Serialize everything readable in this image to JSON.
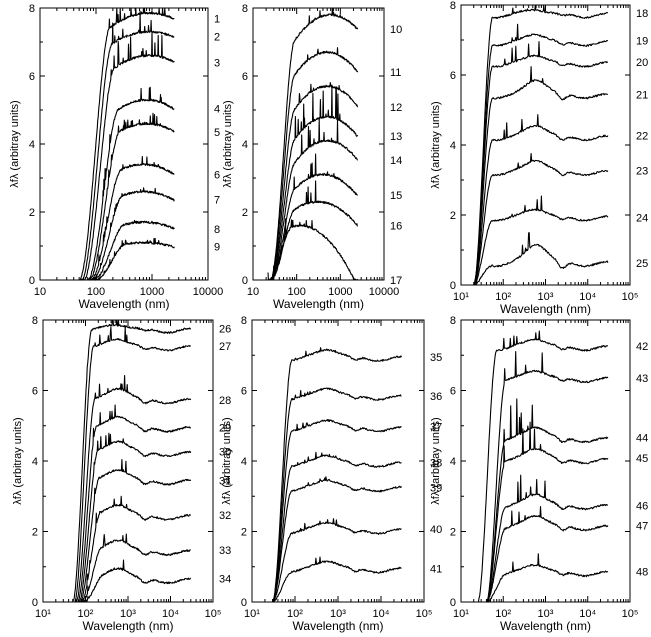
{
  "figure": {
    "ylabel": "λ_f_λ (arbitray units)",
    "ylabel_main": "λ",
    "ylabel_sub": "f",
    "ylabel_subsub": "λ",
    "ylabel_rest": " (arbitray units)",
    "xlabel": "Wavelength (nm)"
  },
  "chart_data": [
    {
      "type": "line",
      "panel": "top-left",
      "xlabel": "Wavelength (nm)",
      "ylabel": "λfλ (arbitray units)",
      "xscale": "log",
      "xlim": [
        10,
        10000
      ],
      "ylim": [
        0,
        8
      ],
      "xticks": [
        10,
        100,
        1000,
        10000
      ],
      "xtick_labels": [
        "10",
        "100",
        "1000",
        "10000"
      ],
      "yticks": [
        0,
        2,
        4,
        6,
        8
      ],
      "ytick_labels": [
        "0",
        "2",
        "4",
        "6",
        "8"
      ],
      "series": [
        {
          "name": "1",
          "start": 50,
          "end": 2500,
          "peak_x": 900,
          "peak_y": 7.85,
          "shoulder": 7.8,
          "noise": 1,
          "falloff": 0.15
        },
        {
          "name": "2",
          "start": 55,
          "end": 2500,
          "peak_x": 900,
          "peak_y": 7.3,
          "shoulder": 7.2,
          "noise": 1,
          "falloff": 0.15
        },
        {
          "name": "3",
          "start": 60,
          "end": 2500,
          "peak_x": 900,
          "peak_y": 6.6,
          "shoulder": 6.5,
          "noise": 1,
          "falloff": 0.2
        },
        {
          "name": "4",
          "start": 70,
          "end": 2500,
          "peak_x": 800,
          "peak_y": 5.3,
          "shoulder": 5.2,
          "noise": 0.6,
          "falloff": 0.3
        },
        {
          "name": "5",
          "start": 75,
          "end": 2500,
          "peak_x": 800,
          "peak_y": 4.6,
          "shoulder": 4.5,
          "noise": 0.4,
          "falloff": 0.3
        },
        {
          "name": "6",
          "start": 80,
          "end": 2500,
          "peak_x": 700,
          "peak_y": 3.4,
          "shoulder": 3.3,
          "noise": 0.3,
          "falloff": 0.4
        },
        {
          "name": "7",
          "start": 85,
          "end": 2500,
          "peak_x": 700,
          "peak_y": 2.6,
          "shoulder": 2.5,
          "noise": 0.2,
          "falloff": 0.45
        },
        {
          "name": "8",
          "start": 90,
          "end": 2500,
          "peak_x": 700,
          "peak_y": 1.7,
          "shoulder": 1.6,
          "noise": 0.2,
          "falloff": 0.5
        },
        {
          "name": "9",
          "start": 95,
          "end": 2500,
          "peak_x": 700,
          "peak_y": 1.1,
          "shoulder": 1.0,
          "noise": 0.2,
          "falloff": 0.55
        }
      ]
    },
    {
      "type": "line",
      "panel": "top-middle",
      "xlabel": "Wavelength (nm)",
      "ylabel": "λfλ (arbitray units)",
      "xscale": "log",
      "xlim": [
        10,
        10000
      ],
      "ylim": [
        0,
        8
      ],
      "xticks": [
        10,
        100,
        1000,
        10000
      ],
      "xtick_labels": [
        "10",
        "100",
        "1000",
        "10000"
      ],
      "yticks": [
        0,
        2,
        4,
        6,
        8
      ],
      "ytick_labels": [
        "0",
        "2",
        "4",
        "6",
        "8"
      ],
      "series": [
        {
          "name": "10",
          "start": 25,
          "end": 2500,
          "peak_x": 600,
          "peak_y": 7.8,
          "shoulder": 7.7,
          "noise": 0.3,
          "falloff": 0.2
        },
        {
          "name": "11",
          "start": 25,
          "end": 2500,
          "peak_x": 500,
          "peak_y": 6.7,
          "shoulder": 6.6,
          "noise": 0.3,
          "falloff": 0.25
        },
        {
          "name": "12",
          "start": 25,
          "end": 2500,
          "peak_x": 500,
          "peak_y": 5.7,
          "shoulder": 5.6,
          "noise": 0.4,
          "falloff": 0.3
        },
        {
          "name": "13",
          "start": 25,
          "end": 2500,
          "peak_x": 500,
          "peak_y": 4.8,
          "shoulder": 4.7,
          "noise": 1.2,
          "falloff": 0.35
        },
        {
          "name": "14",
          "start": 25,
          "end": 2500,
          "peak_x": 500,
          "peak_y": 4.1,
          "shoulder": 4.0,
          "noise": 1.0,
          "falloff": 0.4
        },
        {
          "name": "15",
          "start": 25,
          "end": 2500,
          "peak_x": 400,
          "peak_y": 3.1,
          "shoulder": 3.0,
          "noise": 0.8,
          "falloff": 0.45
        },
        {
          "name": "16",
          "start": 25,
          "end": 2500,
          "peak_x": 300,
          "peak_y": 2.3,
          "shoulder": 2.2,
          "noise": 0.8,
          "falloff": 0.5
        },
        {
          "name": "17",
          "start": 22,
          "end": 2500,
          "peak_x": 120,
          "peak_y": 1.6,
          "shoulder": 1.5,
          "noise": 0.3,
          "falloff": 0.9
        }
      ]
    },
    {
      "type": "line",
      "panel": "top-right",
      "xlabel": "Wavelength (nm)",
      "ylabel": "λfλ (arbitray units)",
      "xscale": "log",
      "xlim": [
        10,
        100000
      ],
      "ylim": [
        0,
        8
      ],
      "xticks": [
        10,
        100,
        1000,
        10000,
        100000
      ],
      "xtick_labels": [
        "10¹",
        "10²",
        "10³",
        "10⁴",
        "10⁵"
      ],
      "yticks": [
        0,
        2,
        4,
        6,
        8
      ],
      "ytick_labels": [
        "0",
        "2",
        "4",
        "6",
        "8"
      ],
      "series": [
        {
          "name": "18",
          "start": 20,
          "end": 30000,
          "level": 7.7,
          "bump": 0.2,
          "noise": 0.5
        },
        {
          "name": "19",
          "start": 20,
          "end": 30000,
          "level": 6.9,
          "bump": 0.3,
          "noise": 0.5
        },
        {
          "name": "20",
          "start": 20,
          "end": 30000,
          "level": 6.3,
          "bump": 0.3,
          "noise": 0.5
        },
        {
          "name": "21",
          "start": 20,
          "end": 30000,
          "level": 5.4,
          "bump": 0.5,
          "noise": 0.5
        },
        {
          "name": "22",
          "start": 20,
          "end": 30000,
          "level": 4.2,
          "bump": 0.4,
          "noise": 0.5
        },
        {
          "name": "23",
          "start": 20,
          "end": 30000,
          "level": 3.2,
          "bump": 0.4,
          "noise": 0.5
        },
        {
          "name": "24",
          "start": 20,
          "end": 30000,
          "level": 1.9,
          "bump": 0.3,
          "noise": 0.5
        },
        {
          "name": "25",
          "start": 20,
          "end": 30000,
          "level": 0.6,
          "bump": 0.6,
          "noise": 0.5
        }
      ]
    },
    {
      "type": "line",
      "panel": "bottom-left",
      "xlabel": "Wavelength (nm)",
      "ylabel": "λfλ (arbitray units)",
      "xscale": "log",
      "xlim": [
        10,
        100000
      ],
      "ylim": [
        0,
        8
      ],
      "xticks": [
        10,
        100,
        1000,
        10000,
        100000
      ],
      "xtick_labels": [
        "10¹",
        "10²",
        "10³",
        "10⁴",
        "10⁵"
      ],
      "yticks": [
        0,
        2,
        4,
        6,
        8
      ],
      "ytick_labels": [
        "0",
        "2",
        "4",
        "6",
        "8"
      ],
      "series": [
        {
          "name": "26",
          "start": 50,
          "end": 30000,
          "level": 7.7,
          "bump": 0.2,
          "noise": 0.6
        },
        {
          "name": "27",
          "start": 55,
          "end": 30000,
          "level": 7.2,
          "bump": 0.3,
          "noise": 0.5
        },
        {
          "name": "28",
          "start": 60,
          "end": 30000,
          "level": 5.7,
          "bump": 0.4,
          "noise": 0.6
        },
        {
          "name": "29",
          "start": 65,
          "end": 30000,
          "level": 4.9,
          "bump": 0.4,
          "noise": 0.4
        },
        {
          "name": "30",
          "start": 70,
          "end": 30000,
          "level": 4.2,
          "bump": 0.4,
          "noise": 0.4
        },
        {
          "name": "31",
          "start": 75,
          "end": 30000,
          "level": 3.4,
          "bump": 0.4,
          "noise": 0.4
        },
        {
          "name": "32",
          "start": 80,
          "end": 30000,
          "level": 2.4,
          "bump": 0.4,
          "noise": 0.4
        },
        {
          "name": "33",
          "start": 85,
          "end": 30000,
          "level": 1.4,
          "bump": 0.4,
          "noise": 0.4
        },
        {
          "name": "34",
          "start": 90,
          "end": 30000,
          "level": 0.6,
          "bump": 0.4,
          "noise": 0.4
        }
      ]
    },
    {
      "type": "line",
      "panel": "bottom-middle",
      "xlabel": "Wavelength (nm)",
      "ylabel": "λfλ (arbitray units)",
      "xscale": "log",
      "xlim": [
        10,
        100000
      ],
      "ylim": [
        0,
        8
      ],
      "xticks": [
        10,
        100,
        1000,
        10000,
        100000
      ],
      "xtick_labels": [
        "10¹",
        "10²",
        "10³",
        "10⁴",
        "10⁵"
      ],
      "yticks": [
        0,
        2,
        4,
        6,
        8
      ],
      "ytick_labels": [
        "0",
        "2",
        "4",
        "6",
        "8"
      ],
      "series": [
        {
          "name": "35",
          "start": 30,
          "end": 30000,
          "level": 6.9,
          "bump": 0.3,
          "noise": 0.2
        },
        {
          "name": "36",
          "start": 30,
          "end": 30000,
          "level": 5.8,
          "bump": 0.3,
          "noise": 0.2
        },
        {
          "name": "37",
          "start": 30,
          "end": 30000,
          "level": 4.9,
          "bump": 0.3,
          "noise": 0.2
        },
        {
          "name": "38",
          "start": 30,
          "end": 30000,
          "level": 3.9,
          "bump": 0.3,
          "noise": 0.2
        },
        {
          "name": "39",
          "start": 30,
          "end": 30000,
          "level": 3.2,
          "bump": 0.3,
          "noise": 0.2
        },
        {
          "name": "40",
          "start": 30,
          "end": 30000,
          "level": 2.0,
          "bump": 0.3,
          "noise": 0.2
        },
        {
          "name": "41",
          "start": 30,
          "end": 30000,
          "level": 0.9,
          "bump": 0.3,
          "noise": 0.2
        }
      ]
    },
    {
      "type": "line",
      "panel": "bottom-right",
      "xlabel": "Wavelength (nm)",
      "ylabel": "λfλ (arbitray units)",
      "xscale": "log",
      "xlim": [
        10,
        100000
      ],
      "ylim": [
        0,
        8
      ],
      "xticks": [
        10,
        100,
        1000,
        10000,
        100000
      ],
      "xtick_labels": [
        "10¹",
        "10²",
        "10³",
        "10⁴",
        "10⁵"
      ],
      "yticks": [
        0,
        2,
        4,
        6,
        8
      ],
      "ytick_labels": [
        "0",
        "2",
        "4",
        "6",
        "8"
      ],
      "series": [
        {
          "name": "42",
          "start": 25,
          "end": 30000,
          "level": 7.2,
          "bump": 0.3,
          "noise": 0.6
        },
        {
          "name": "43",
          "start": 40,
          "end": 30000,
          "level": 6.3,
          "bump": 0.3,
          "noise": 0.8
        },
        {
          "name": "44",
          "start": 40,
          "end": 30000,
          "level": 4.6,
          "bump": 0.4,
          "noise": 1.3
        },
        {
          "name": "45",
          "start": 40,
          "end": 30000,
          "level": 4.0,
          "bump": 0.4,
          "noise": 1.0
        },
        {
          "name": "46",
          "start": 40,
          "end": 30000,
          "level": 2.7,
          "bump": 0.4,
          "noise": 0.9
        },
        {
          "name": "47",
          "start": 40,
          "end": 30000,
          "level": 2.1,
          "bump": 0.4,
          "noise": 0.8
        },
        {
          "name": "48",
          "start": 40,
          "end": 30000,
          "level": 0.8,
          "bump": 0.3,
          "noise": 0.6
        }
      ]
    }
  ]
}
